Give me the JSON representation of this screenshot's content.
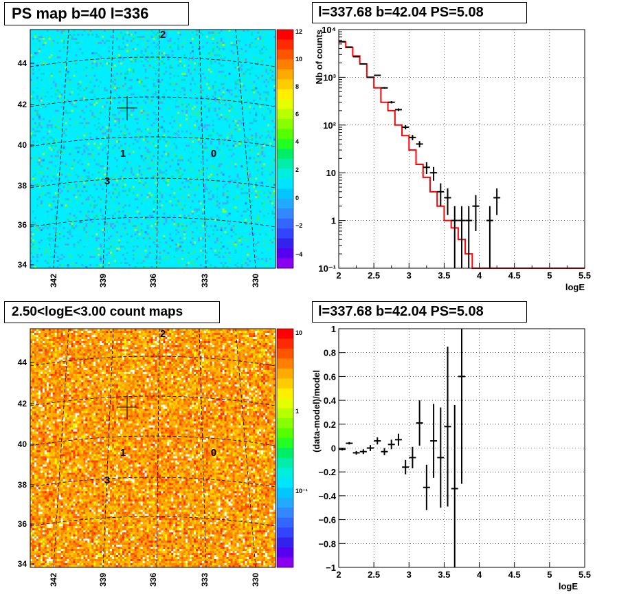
{
  "panels": {
    "ps_map": {
      "title": "PS map b=40 l=336",
      "colorbar_ticks": [
        "12",
        "10",
        "8",
        "6",
        "4",
        "2",
        "0",
        "−2",
        "−4"
      ],
      "y_ticks": [
        "44",
        "42",
        "40",
        "38",
        "36",
        "34"
      ],
      "x_ticks": [
        "342",
        "339",
        "336",
        "333",
        "330"
      ],
      "source_labels": [
        "2",
        "1",
        "0",
        "3"
      ]
    },
    "count_map": {
      "title": "2.50<logE<3.00 count maps",
      "colorbar_ticks": [
        "10",
        "1",
        "10⁻¹"
      ],
      "y_ticks": [
        "44",
        "42",
        "40",
        "38",
        "36",
        "34"
      ],
      "x_ticks": [
        "342",
        "339",
        "336",
        "333",
        "330"
      ],
      "source_labels": [
        "2",
        "1",
        "0",
        "3"
      ]
    },
    "spectrum": {
      "title": "l=337.68 b=42.04 PS=5.08"
    },
    "residual": {
      "title": "l=337.68 b=42.04 PS=5.08"
    }
  },
  "chart_data": [
    {
      "type": "line",
      "id": "spectrum",
      "title": "l=337.68 b=42.04 PS=5.08",
      "xlabel": "logE",
      "ylabel": "Nb of counts",
      "xlim": [
        2,
        5.5
      ],
      "ylim": [
        0.1,
        10000
      ],
      "yscale": "log",
      "grid": true,
      "x_ticks": [
        "2",
        "2.5",
        "3",
        "3.5",
        "4",
        "4.5",
        "5",
        "5.5"
      ],
      "y_ticks": [
        {
          "label": "10⁻¹",
          "value": 0.1
        },
        {
          "label": "1",
          "value": 1
        },
        {
          "label": "10",
          "value": 10
        },
        {
          "label": "10²",
          "value": 100
        },
        {
          "label": "10³",
          "value": 1000
        },
        {
          "label": "10⁴",
          "value": 10000
        }
      ],
      "series": [
        {
          "type": "step",
          "color": "#ff0000",
          "bin_edges": [
            2.0,
            2.1,
            2.2,
            2.3,
            2.4,
            2.5,
            2.6,
            2.7,
            2.8,
            2.9,
            3.0,
            3.1,
            3.2,
            3.3,
            3.4,
            3.5,
            3.6,
            3.7,
            3.8,
            3.9,
            4.0,
            5.5
          ],
          "values": [
            5500,
            4200,
            2800,
            1900,
            1000,
            600,
            300,
            200,
            100,
            60,
            30,
            15,
            8,
            4,
            2,
            1,
            0.7,
            0.4,
            0.2,
            0.1,
            0.1
          ]
        },
        {
          "type": "errorbar",
          "color": "#000000",
          "x": [
            2.05,
            2.15,
            2.25,
            2.35,
            2.45,
            2.55,
            2.65,
            2.75,
            2.85,
            2.95,
            3.05,
            3.15,
            3.25,
            3.35,
            3.45,
            3.55,
            3.65,
            3.75,
            3.85,
            3.95,
            4.15,
            4.25
          ],
          "y": [
            5600,
            4300,
            2700,
            1900,
            1000,
            1100,
            600,
            300,
            210,
            90,
            55,
            40,
            13,
            10,
            4,
            3,
            1,
            1,
            1,
            2,
            1,
            3
          ],
          "err_low": [
            74,
            66,
            52,
            44,
            32,
            33,
            24,
            17,
            14,
            9,
            7,
            6,
            3.6,
            3.2,
            2,
            1.7,
            0.9,
            0.9,
            0.9,
            1.4,
            0.9,
            1.7
          ],
          "err_high": [
            74,
            66,
            52,
            44,
            32,
            33,
            24,
            17,
            14,
            9,
            7,
            6,
            3.6,
            3.2,
            2,
            1.7,
            1,
            1,
            1,
            1.4,
            1,
            1.7
          ]
        }
      ]
    },
    {
      "type": "scatter",
      "id": "residual",
      "title": "l=337.68 b=42.04 PS=5.08",
      "xlabel": "logE",
      "ylabel": "(data-model)/model",
      "xlim": [
        2,
        5.5
      ],
      "ylim": [
        -1,
        1
      ],
      "grid": true,
      "x_ticks": [
        "2",
        "2.5",
        "3",
        "3.5",
        "4",
        "4.5",
        "5",
        "5.5"
      ],
      "y_ticks": [
        "−1",
        "−0.8",
        "−0.6",
        "−0.4",
        "−0.2",
        "0",
        "0.2",
        "0.4",
        "0.6",
        "0.8",
        "1"
      ],
      "series": [
        {
          "type": "errorbar",
          "color": "#000000",
          "x": [
            2.05,
            2.15,
            2.25,
            2.35,
            2.45,
            2.55,
            2.65,
            2.75,
            2.85,
            2.95,
            3.05,
            3.15,
            3.25,
            3.35,
            3.45,
            3.55,
            3.65,
            3.75
          ],
          "y": [
            -0.01,
            0.04,
            -0.04,
            -0.03,
            0.0,
            0.06,
            -0.03,
            0.03,
            0.07,
            -0.16,
            -0.08,
            0.21,
            -0.33,
            0.06,
            -0.08,
            0.18,
            -0.34,
            0.6
          ],
          "err": [
            0.01,
            0.01,
            0.015,
            0.02,
            0.025,
            0.03,
            0.03,
            0.04,
            0.05,
            0.06,
            0.09,
            0.19,
            0.19,
            0.31,
            0.42,
            0.67,
            0.7,
            0.9
          ]
        }
      ]
    }
  ]
}
